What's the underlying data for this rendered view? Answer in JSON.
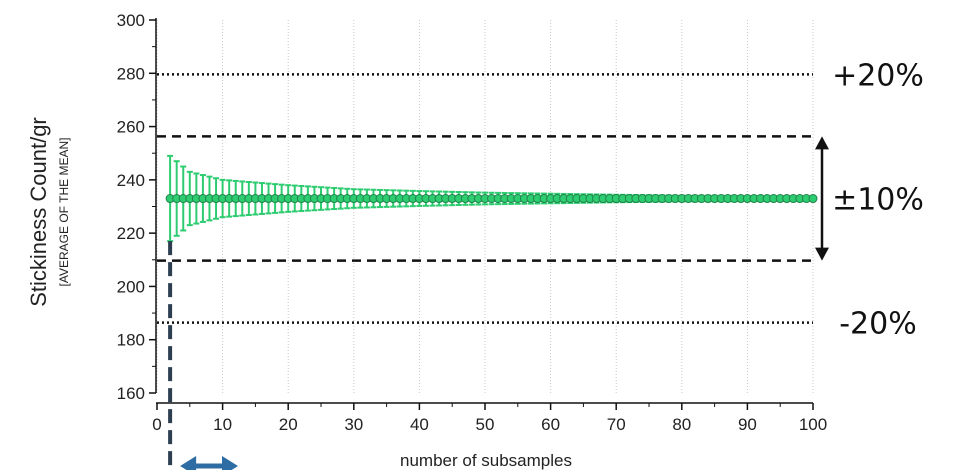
{
  "chart_data": {
    "type": "scatter",
    "title": "",
    "xlabel": "number of subsamples",
    "ylabel": "Stickiness Count/gr",
    "ylabel_sub": "[AVERAGE OF THE MEAN]",
    "xlim": [
      0,
      100
    ],
    "ylim": [
      160,
      300
    ],
    "xticks": [
      0,
      10,
      20,
      30,
      40,
      50,
      60,
      70,
      80,
      90,
      100
    ],
    "yticks": [
      160,
      180,
      200,
      220,
      240,
      260,
      280,
      300
    ],
    "grid": "vertical, dotted",
    "mean": 233,
    "series": [
      {
        "marker_color": "#2ecc71",
        "x_range": [
          2,
          100
        ],
        "y": 233,
        "error_bar_color": "#2ecc71",
        "error_half_width_at_x": [
          [
            2,
            16
          ],
          [
            5,
            10
          ],
          [
            10,
            7
          ],
          [
            20,
            5
          ],
          [
            30,
            3.5
          ],
          [
            40,
            2.8
          ],
          [
            50,
            2.2
          ],
          [
            60,
            1.8
          ],
          [
            70,
            1.4
          ],
          [
            80,
            1.1
          ],
          [
            100,
            0.8
          ]
        ]
      }
    ],
    "reference_lines": [
      {
        "label": "+20%",
        "y": 279.6,
        "style": "dotted"
      },
      {
        "label": "±10%",
        "y_upper": 256.3,
        "y_lower": 209.7,
        "style": "dashed"
      },
      {
        "label": "-20%",
        "y": 186.4,
        "style": "dotted"
      }
    ],
    "annotations": {
      "threshold_x": 2,
      "threshold_line_color": "#2c3e50",
      "arrow_color": "#2e6da4"
    }
  }
}
